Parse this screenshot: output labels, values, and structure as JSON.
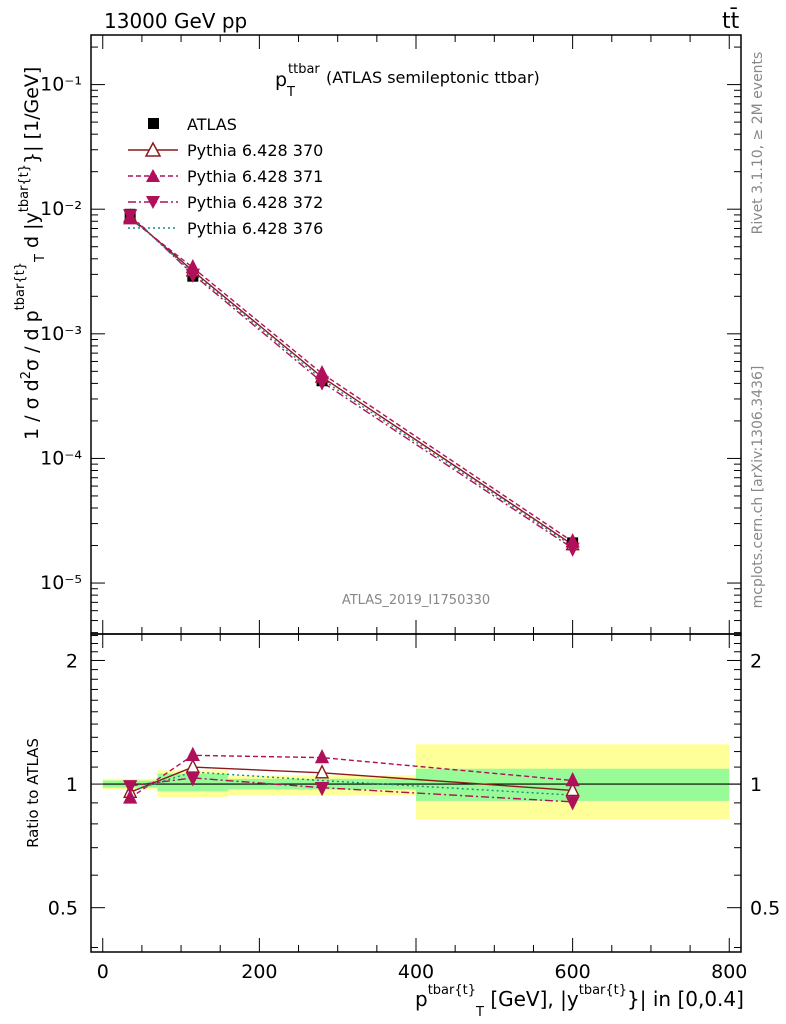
{
  "header": {
    "energy": "13000 GeV pp",
    "process": "tt̄",
    "plot_title_var": "p",
    "plot_title_sup": "ttbar",
    "plot_title_sub": "T",
    "plot_title_rest": "(ATLAS semileptonic ttbar)"
  },
  "side_labels": {
    "rivet": "Rivet 3.1.10, ≥ 2M events",
    "mcplots": "mcplots.cern.ch [arXiv:1306.3436]"
  },
  "watermark": "ATLAS_2019_I1750330",
  "axes": {
    "main_ylabel": "1 / σ d²σ / d p^{tbar{t}}_T d |y^{tbar{t}}| [1/GeV]",
    "ratio_ylabel": "Ratio to ATLAS",
    "xlabel": "p^{tbar{t}}_T [GeV], |y^{tbar{t}}| in [0,0.4]",
    "main_ytick_labels": [
      "10⁻¹",
      "10⁻²",
      "10⁻³",
      "10⁻⁴",
      "10⁻⁵"
    ],
    "ratio_ytick_labels": [
      "2",
      "1",
      "0.5"
    ],
    "xtick_labels": [
      "0",
      "200",
      "400",
      "600",
      "800"
    ]
  },
  "legend": {
    "atlas": "ATLAS",
    "s370": "Pythia 6.428 370",
    "s371": "Pythia 6.428 371",
    "s372": "Pythia 6.428 372",
    "s376": "Pythia 6.428 376"
  },
  "colors": {
    "data": "#000000",
    "s370": "#8b1a1a",
    "s371": "#b0105a",
    "s372": "#b0105a",
    "s376": "#1a8a80",
    "band_inner": "#98fb98",
    "band_outer": "#ffff99"
  },
  "chart_data": {
    "type": "line",
    "x_label": "p^{tbar{t}}_T [GeV], |y^{tbar{t}}| in [0,0.4]",
    "xlim": [
      -15,
      815
    ],
    "main_ylim": [
      3.9e-06,
      0.25
    ],
    "main_yscale": "log",
    "ratio_ylim": [
      0.39,
      2.32
    ],
    "ratio_yscale": "log",
    "bins": [
      [
        0,
        70
      ],
      [
        70,
        160
      ],
      [
        160,
        400
      ],
      [
        400,
        800
      ]
    ],
    "x": [
      35,
      115,
      280,
      600
    ],
    "atlas": [
      0.0091,
      0.0029,
      0.00042,
      2.1e-05
    ],
    "atlas_inner_band": [
      [
        0.98,
        1.02
      ],
      [
        0.96,
        1.06
      ],
      [
        0.97,
        1.03
      ],
      [
        0.91,
        1.09
      ]
    ],
    "atlas_outer_band": [
      [
        0.97,
        1.03
      ],
      [
        0.93,
        1.08
      ],
      [
        0.94,
        1.05
      ],
      [
        0.82,
        1.25
      ]
    ],
    "series": [
      {
        "name": "Pythia 6.428 370",
        "key": "s370",
        "values": [
          0.0087,
          0.0032,
          0.00045,
          2.03e-05
        ],
        "ratio": [
          0.955,
          1.1,
          1.065,
          0.965
        ]
      },
      {
        "name": "Pythia 6.428 371",
        "key": "s371",
        "values": [
          0.0084,
          0.0034,
          0.00048,
          2.15e-05
        ],
        "ratio": [
          0.925,
          1.175,
          1.16,
          1.02
        ]
      },
      {
        "name": "Pythia 6.428 372",
        "key": "s372",
        "values": [
          0.009,
          0.003,
          0.00041,
          1.9e-05
        ],
        "ratio": [
          0.99,
          1.035,
          0.98,
          0.905
        ]
      },
      {
        "name": "Pythia 6.428 376",
        "key": "s376",
        "values": [
          0.0087,
          0.0031,
          0.00043,
          1.97e-05
        ],
        "ratio": [
          0.96,
          1.07,
          1.02,
          0.94
        ]
      }
    ]
  }
}
